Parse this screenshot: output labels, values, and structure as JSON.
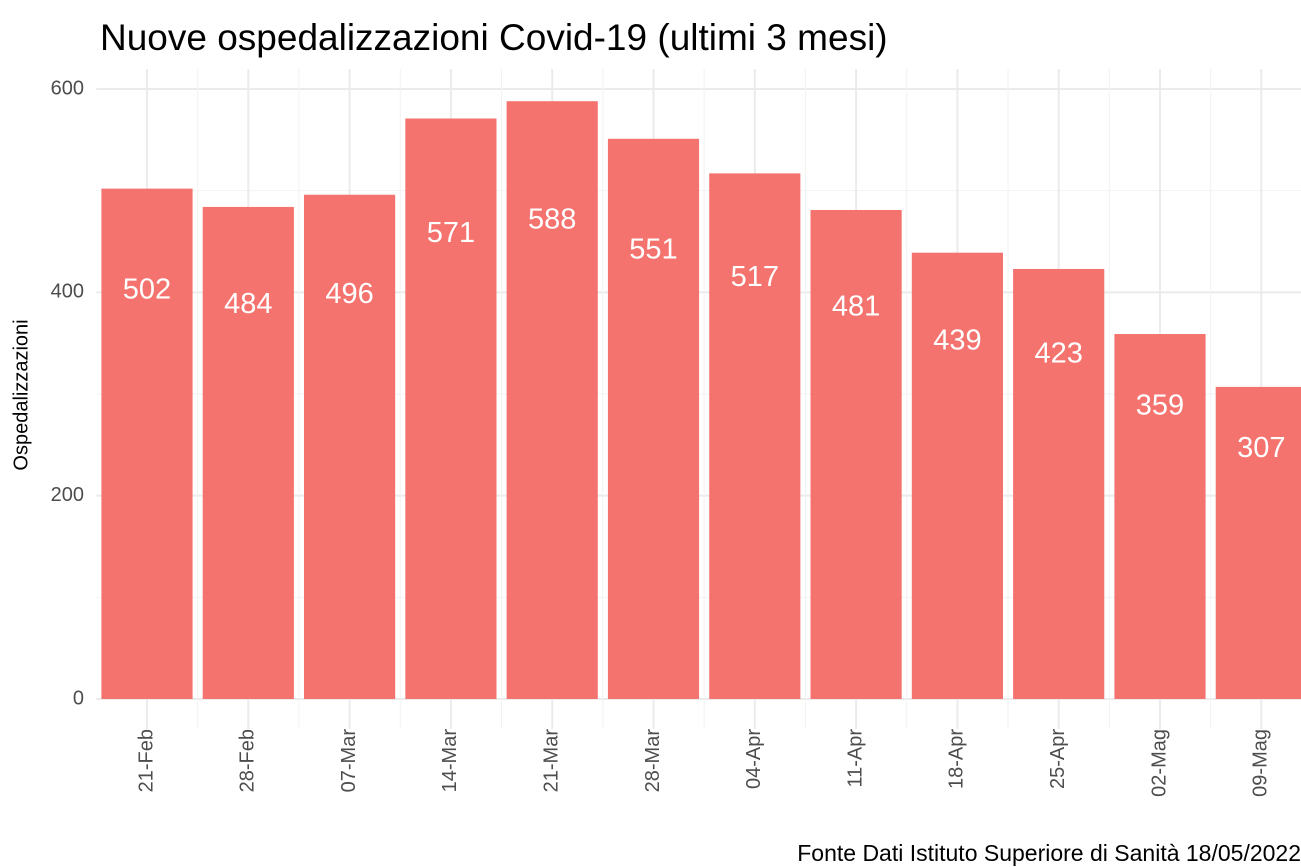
{
  "chart_data": {
    "type": "bar",
    "title": "Nuove ospedalizzazioni Covid-19 (ultimi 3 mesi)",
    "y_label": "Ospedalizzazioni",
    "caption": "Fonte Dati Istituto Superiore di Sanità 18/05/2022",
    "categories": [
      "21-Feb",
      "28-Feb",
      "07-Mar",
      "14-Mar",
      "21-Mar",
      "28-Mar",
      "04-Apr",
      "11-Apr",
      "18-Apr",
      "25-Apr",
      "02-Mag",
      "09-Mag"
    ],
    "values": [
      502,
      484,
      496,
      571,
      588,
      551,
      517,
      481,
      439,
      423,
      359,
      307
    ],
    "color": "#f4736e",
    "ylim": [
      0,
      600
    ],
    "yticks": [
      0,
      200,
      400,
      600
    ],
    "yminorticks": [
      100,
      300,
      500
    ],
    "grid": true
  }
}
